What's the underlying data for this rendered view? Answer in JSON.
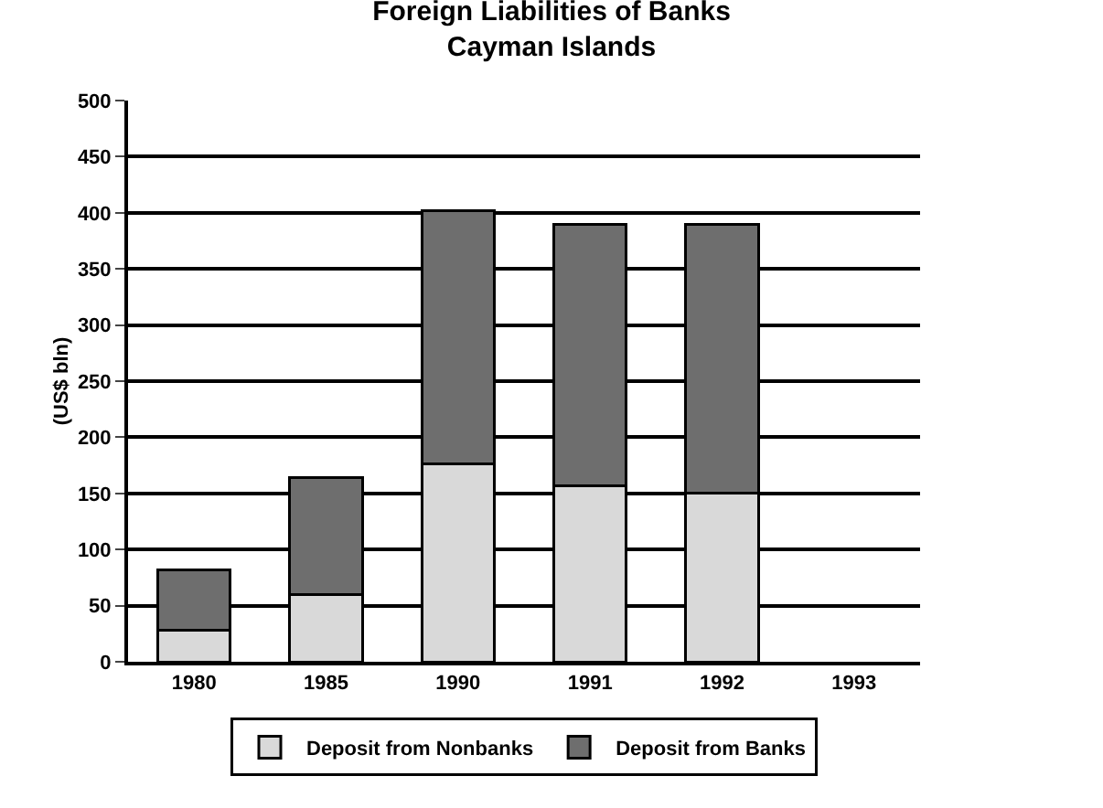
{
  "chart_data": {
    "type": "bar",
    "title": "Foreign Liabilities of Banks\nCayman Islands",
    "ylabel": "(US$ bln)",
    "categories": [
      "1980",
      "1985",
      "1990",
      "1991",
      "1992",
      "1993"
    ],
    "stacked": true,
    "series": [
      {
        "name": "Deposit from Nonbanks",
        "color": "#d9d9d9",
        "values": [
          28,
          60,
          176,
          157,
          150,
          null
        ]
      },
      {
        "name": "Deposit from Banks",
        "color": "#6e6e6e",
        "values": [
          54,
          104,
          226,
          233,
          240,
          null
        ]
      }
    ],
    "ylim": [
      0,
      500
    ],
    "yticks": [
      0,
      50,
      100,
      150,
      200,
      250,
      300,
      350,
      400,
      450,
      500
    ],
    "grid": "y",
    "legend": "bottom"
  }
}
